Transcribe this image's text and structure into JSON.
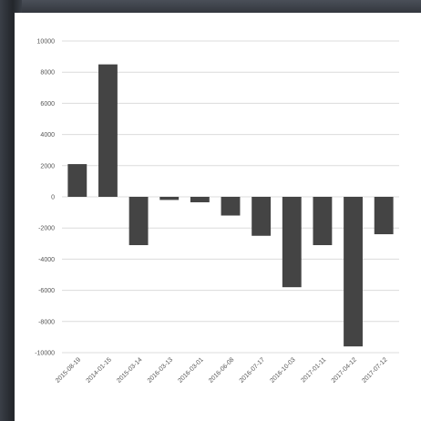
{
  "chart_data": {
    "type": "bar",
    "title": "",
    "xlabel": "",
    "ylabel": "",
    "categories": [
      "2015-08-19",
      "2014-01-15",
      "2015-03-14",
      "2016-03-13",
      "2016-03-01",
      "2016-06-08",
      "2016-07-17",
      "2016-10-03",
      "2017-01-11",
      "2017-04-12",
      "2017-07-12"
    ],
    "values": [
      2100,
      8500,
      -3100,
      -200,
      -350,
      -1200,
      -2500,
      -5800,
      -3100,
      -9600,
      -2400
    ],
    "ylim": [
      -10000,
      10000
    ],
    "yticks": [
      10000,
      8000,
      6000,
      4000,
      2000,
      0,
      -2000,
      -4000,
      -6000,
      -8000,
      -10000
    ],
    "ytick_labels": [
      "10000",
      "8000",
      "6000",
      "4000",
      "2000",
      "0",
      "-2000",
      "-4000",
      "-6000",
      "-8000",
      "-10000"
    ],
    "grid": true,
    "bar_color": "#444444"
  }
}
